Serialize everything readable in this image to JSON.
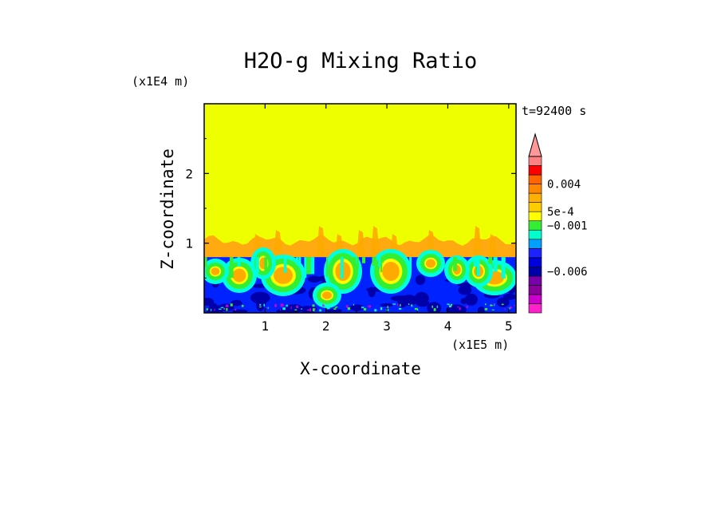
{
  "chart_data": {
    "type": "heatmap",
    "title": "H2O-g Mixing Ratio",
    "xlabel": "X-coordinate",
    "ylabel": "Z-coordinate",
    "x_scale_label": "(x1E5 m)",
    "y_scale_label": "(x1E4 m)",
    "time_label": "t=92400 s",
    "xlim": [
      0,
      5.12
    ],
    "ylim": [
      0,
      3.0
    ],
    "x_ticks": [
      1,
      2,
      3,
      4,
      5
    ],
    "x_tick_labels": [
      "1",
      "2",
      "3",
      "4",
      "5"
    ],
    "y_ticks": [
      1,
      2
    ],
    "y_tick_labels": [
      "1",
      "2"
    ],
    "field_levels": {
      "upper_layer_top": 3.0,
      "inversion_height": 0.8,
      "cloud_top_height": 1.04
    },
    "colorbar": {
      "level_colors": [
        "#ff22cc",
        "#cc00cc",
        "#880099",
        "#7700aa",
        "#0000aa",
        "#0000dd",
        "#1e22ff",
        "#00a0ff",
        "#00ffcc",
        "#33ee33",
        "#ffff00",
        "#ffcc00",
        "#ffb000",
        "#ff8800",
        "#ff6600",
        "#ff0000",
        "#ff8080"
      ],
      "extend_color": "#ff9999",
      "labels": [
        {
          "text": "0.004",
          "level": 14
        },
        {
          "text": "5e-4",
          "level": 11
        },
        {
          "text": "−0.001",
          "level": 9.5
        },
        {
          "text": "−0.006",
          "level": 4.5
        }
      ]
    },
    "colors": {
      "upper": "#eeff00",
      "cloud": "#ffaa11",
      "blue_base": "#0022ff",
      "dark_blue": "#0000aa",
      "cyan": "#00ffdd",
      "green": "#33ee33",
      "orange": "#ffaa00"
    }
  }
}
